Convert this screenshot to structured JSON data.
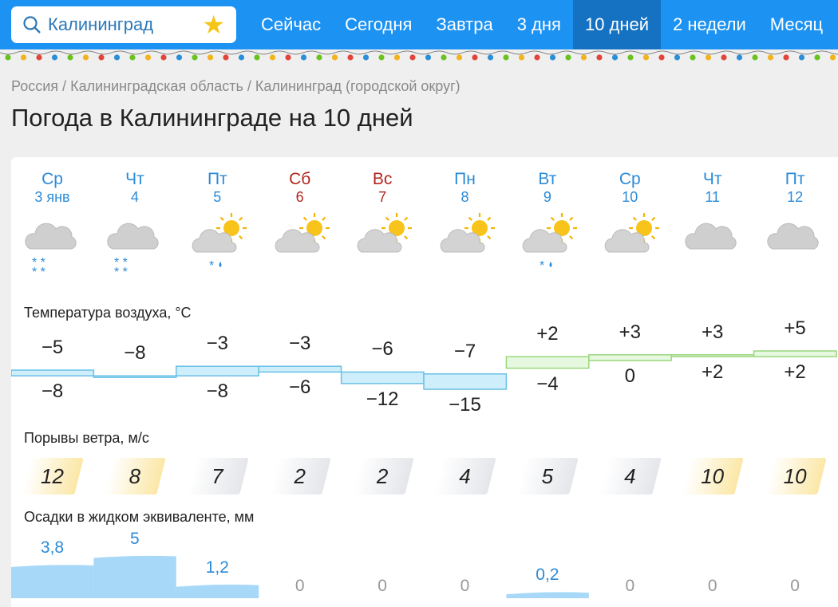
{
  "search": {
    "value": "Калининград",
    "icon": "search-icon",
    "favorite_icon": "star-icon"
  },
  "nav": {
    "tabs": [
      {
        "label": "Сейчас"
      },
      {
        "label": "Сегодня"
      },
      {
        "label": "Завтра"
      },
      {
        "label": "3 дня"
      },
      {
        "label": "10 дней",
        "active": true
      },
      {
        "label": "2 недели"
      },
      {
        "label": "Месяц"
      }
    ]
  },
  "breadcrumb": [
    "Россия",
    "Калининградская область",
    "Калининград (городской округ)"
  ],
  "breadcrumb_sep": "/",
  "page_title": "Погода в Калининграде на 10 дней",
  "colors": {
    "header": "#1c92f2",
    "accent": "#2b8bd8",
    "weekend": "#b3261e",
    "cold_fill": "#cdeefa",
    "warm_fill": "#e6f8e0",
    "precip": "#a7d8f8"
  },
  "days": [
    {
      "dow": "Ср",
      "date": "3 янв",
      "weekend": false,
      "icon": "cloud-snow",
      "tmax": "−5",
      "tmin": "−8",
      "max": -5,
      "min": -8,
      "wind": "12",
      "wind_level": "high",
      "precip": "3,8",
      "precip_val": 3.8
    },
    {
      "dow": "Чт",
      "date": "4",
      "weekend": false,
      "icon": "cloud-snow",
      "tmax": "−8",
      "tmin": "",
      "max": -8,
      "min": -8,
      "wind": "8",
      "wind_level": "high",
      "precip": "5",
      "precip_val": 5
    },
    {
      "dow": "Пт",
      "date": "5",
      "weekend": false,
      "icon": "sun-cloud-sleet",
      "tmax": "−3",
      "tmin": "−8",
      "max": -3,
      "min": -8,
      "wind": "7",
      "wind_level": "low",
      "precip": "1,2",
      "precip_val": 1.2
    },
    {
      "dow": "Сб",
      "date": "6",
      "weekend": true,
      "icon": "sun-cloud",
      "tmax": "−3",
      "tmin": "−6",
      "max": -3,
      "min": -6,
      "wind": "2",
      "wind_level": "low",
      "precip": "0",
      "precip_val": 0
    },
    {
      "dow": "Вс",
      "date": "7",
      "weekend": true,
      "icon": "sun-cloud",
      "tmax": "−6",
      "tmin": "−12",
      "max": -6,
      "min": -12,
      "wind": "2",
      "wind_level": "low",
      "precip": "0",
      "precip_val": 0
    },
    {
      "dow": "Пн",
      "date": "8",
      "weekend": false,
      "icon": "sun-cloud",
      "tmax": "−7",
      "tmin": "−15",
      "max": -7,
      "min": -15,
      "wind": "4",
      "wind_level": "low",
      "precip": "0",
      "precip_val": 0
    },
    {
      "dow": "Вт",
      "date": "9",
      "weekend": false,
      "icon": "sun-cloud-sleet",
      "tmax": "+2",
      "tmin": "−4",
      "max": 2,
      "min": -4,
      "wind": "5",
      "wind_level": "low",
      "precip": "0,2",
      "precip_val": 0.2
    },
    {
      "dow": "Ср",
      "date": "10",
      "weekend": false,
      "icon": "sun-cloud",
      "tmax": "+3",
      "tmin": "0",
      "max": 3,
      "min": 0,
      "wind": "4",
      "wind_level": "low",
      "precip": "0",
      "precip_val": 0
    },
    {
      "dow": "Чт",
      "date": "11",
      "weekend": false,
      "icon": "cloud",
      "tmax": "+3",
      "tmin": "+2",
      "max": 3,
      "min": 2,
      "wind": "10",
      "wind_level": "high",
      "precip": "0",
      "precip_val": 0
    },
    {
      "dow": "Пт",
      "date": "12",
      "weekend": false,
      "icon": "cloud",
      "tmax": "+5",
      "tmin": "+2",
      "max": 5,
      "min": 2,
      "wind": "10",
      "wind_level": "high",
      "precip": "0",
      "precip_val": 0
    }
  ],
  "sections": {
    "temperature": "Температура воздуха, °C",
    "wind": "Порывы ветра, м/с",
    "precip": "Осадки в жидком эквиваленте, мм"
  }
}
